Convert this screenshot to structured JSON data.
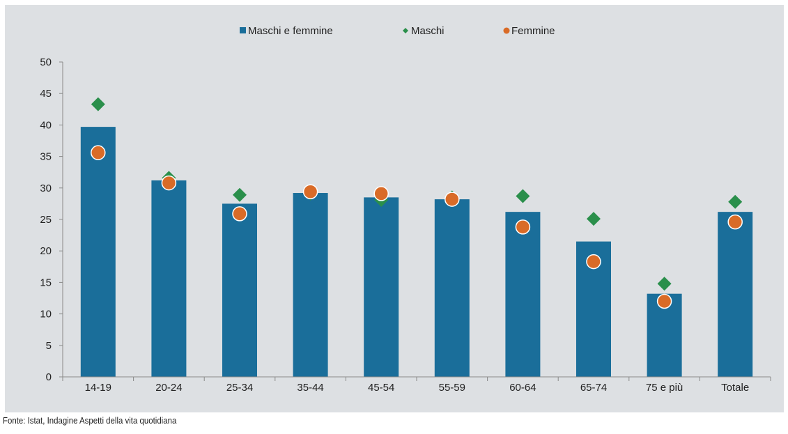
{
  "chart_data": {
    "type": "bar",
    "title": "",
    "xlabel": "",
    "ylabel": "",
    "categories": [
      "14-19",
      "20-24",
      "25-34",
      "35-44",
      "45-54",
      "55-59",
      "60-64",
      "65-74",
      "75 e più",
      "Totale"
    ],
    "ylim": [
      0,
      50
    ],
    "yticks": [
      0,
      5,
      10,
      15,
      20,
      25,
      30,
      35,
      40,
      45,
      50
    ],
    "grid": false,
    "legend_position": "top",
    "series": [
      {
        "name": "Maschi e femmine",
        "mark": "bar",
        "color": "#1a6e9a",
        "values": [
          39.7,
          31.2,
          27.5,
          29.2,
          28.5,
          28.2,
          26.2,
          21.5,
          13.2,
          26.2
        ]
      },
      {
        "name": "Maschi",
        "mark": "diamond",
        "color": "#2a8f4b",
        "values": [
          43.3,
          31.6,
          28.9,
          29.1,
          28.1,
          28.5,
          28.7,
          25.1,
          14.8,
          27.8
        ]
      },
      {
        "name": "Femmine",
        "mark": "circle",
        "color": "#d96b27",
        "values": [
          35.6,
          30.8,
          25.9,
          29.4,
          29.1,
          28.2,
          23.8,
          18.3,
          12.0,
          24.6
        ]
      }
    ]
  },
  "source": "Fonte: Istat, Indagine Aspetti della vita quotidiana"
}
